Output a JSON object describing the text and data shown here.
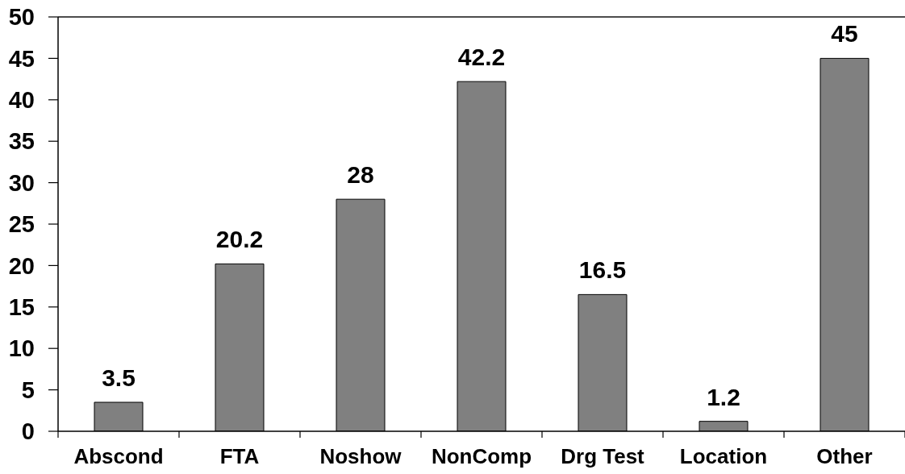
{
  "chart_data": {
    "type": "bar",
    "categories": [
      "Abscond",
      "FTA",
      "Noshow",
      "NonComp",
      "Drg Test",
      "Location",
      "Other"
    ],
    "values": [
      3.5,
      20.2,
      28,
      42.2,
      16.5,
      1.2,
      45
    ],
    "color": "#808080",
    "ylim": [
      0,
      50
    ],
    "yticks": [
      0,
      5,
      10,
      15,
      20,
      25,
      30,
      35,
      40,
      45,
      50
    ],
    "data_labels": true,
    "ref_lines": [
      {
        "axis": "y",
        "value": 50,
        "color": "#4d4d4d"
      }
    ]
  }
}
